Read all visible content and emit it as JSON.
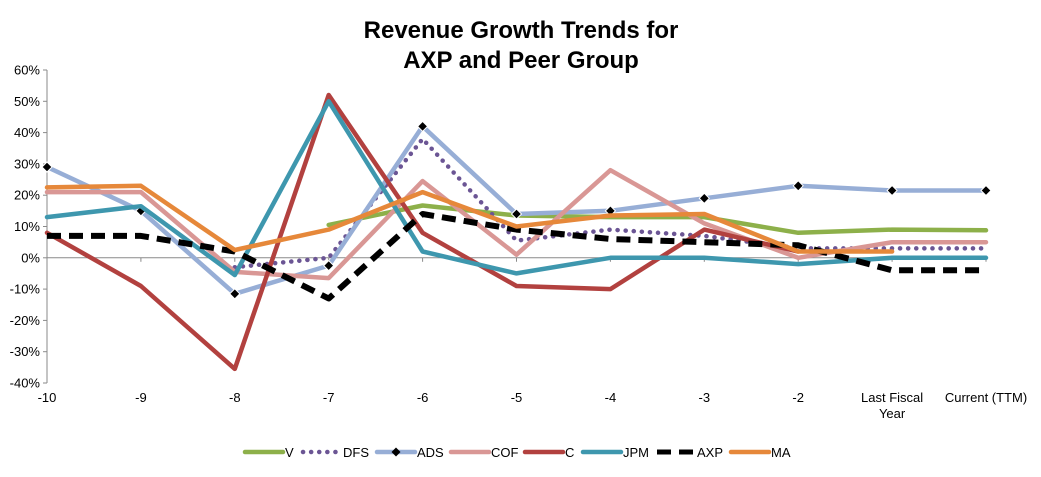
{
  "chart_data": {
    "type": "line",
    "title": "Revenue Growth Trends for AXP and Peer Group",
    "title_lines": [
      "Revenue Growth Trends for",
      "AXP and Peer Group"
    ],
    "xlabel": "",
    "ylabel": "",
    "categories": [
      "-10",
      "-9",
      "-8",
      "-7",
      "-6",
      "-5",
      "-4",
      "-3",
      "-2",
      "Last Fiscal Year",
      "Current (TTM)"
    ],
    "category_label_lines": [
      [
        "-10"
      ],
      [
        "-9"
      ],
      [
        "-8"
      ],
      [
        "-7"
      ],
      [
        "-6"
      ],
      [
        "-5"
      ],
      [
        "-4"
      ],
      [
        "-3"
      ],
      [
        "-2"
      ],
      [
        "Last Fiscal",
        "Year"
      ],
      [
        "Current (TTM)"
      ]
    ],
    "ylim": [
      -0.4,
      0.6
    ],
    "yticks": [
      -0.4,
      -0.3,
      -0.2,
      -0.1,
      0,
      0.1,
      0.2,
      0.3,
      0.4,
      0.5,
      0.6
    ],
    "ytick_labels": [
      "-40%",
      "-30%",
      "-20%",
      "-10%",
      "0%",
      "10%",
      "20%",
      "30%",
      "40%",
      "50%",
      "60%"
    ],
    "grid": false,
    "legend_position": "bottom",
    "series": [
      {
        "name": "V",
        "color": "#8DB04A",
        "style": "solid",
        "values": [
          null,
          null,
          null,
          0.105,
          0.167,
          0.135,
          0.13,
          0.13,
          0.08,
          0.09,
          0.088
        ]
      },
      {
        "name": "DFS",
        "color": "#6B5594",
        "style": "dotted",
        "values": [
          null,
          null,
          -0.03,
          0.0,
          0.38,
          0.055,
          0.09,
          0.07,
          0.03,
          0.03,
          0.03
        ]
      },
      {
        "name": "ADS",
        "color": "#97AED6",
        "style": "solid-marker",
        "values": [
          0.29,
          0.15,
          -0.115,
          -0.025,
          0.42,
          0.14,
          0.15,
          0.19,
          0.23,
          0.215,
          0.215
        ]
      },
      {
        "name": "COF",
        "color": "#D99795",
        "style": "solid",
        "values": [
          0.21,
          0.21,
          -0.045,
          -0.065,
          0.245,
          0.01,
          0.28,
          0.11,
          0.0,
          0.05,
          0.05
        ]
      },
      {
        "name": "C",
        "color": "#B2413F",
        "style": "solid",
        "values": [
          0.08,
          -0.09,
          -0.355,
          0.52,
          0.08,
          -0.09,
          -0.1,
          0.09,
          0.02,
          null,
          null
        ]
      },
      {
        "name": "JPM",
        "color": "#3E97AE",
        "style": "solid",
        "values": [
          0.13,
          0.165,
          -0.055,
          0.5,
          0.02,
          -0.05,
          0.0,
          0.0,
          -0.02,
          0.0,
          0.0
        ]
      },
      {
        "name": "AXP",
        "color": "#000000",
        "style": "dashed",
        "values": [
          0.07,
          0.07,
          0.02,
          -0.13,
          0.14,
          0.09,
          0.06,
          0.05,
          0.04,
          -0.04,
          -0.04
        ]
      },
      {
        "name": "MA",
        "color": "#E6883A",
        "style": "solid",
        "values": [
          0.225,
          0.23,
          0.025,
          0.09,
          0.21,
          0.1,
          0.135,
          0.14,
          0.02,
          0.02,
          null
        ]
      }
    ]
  }
}
